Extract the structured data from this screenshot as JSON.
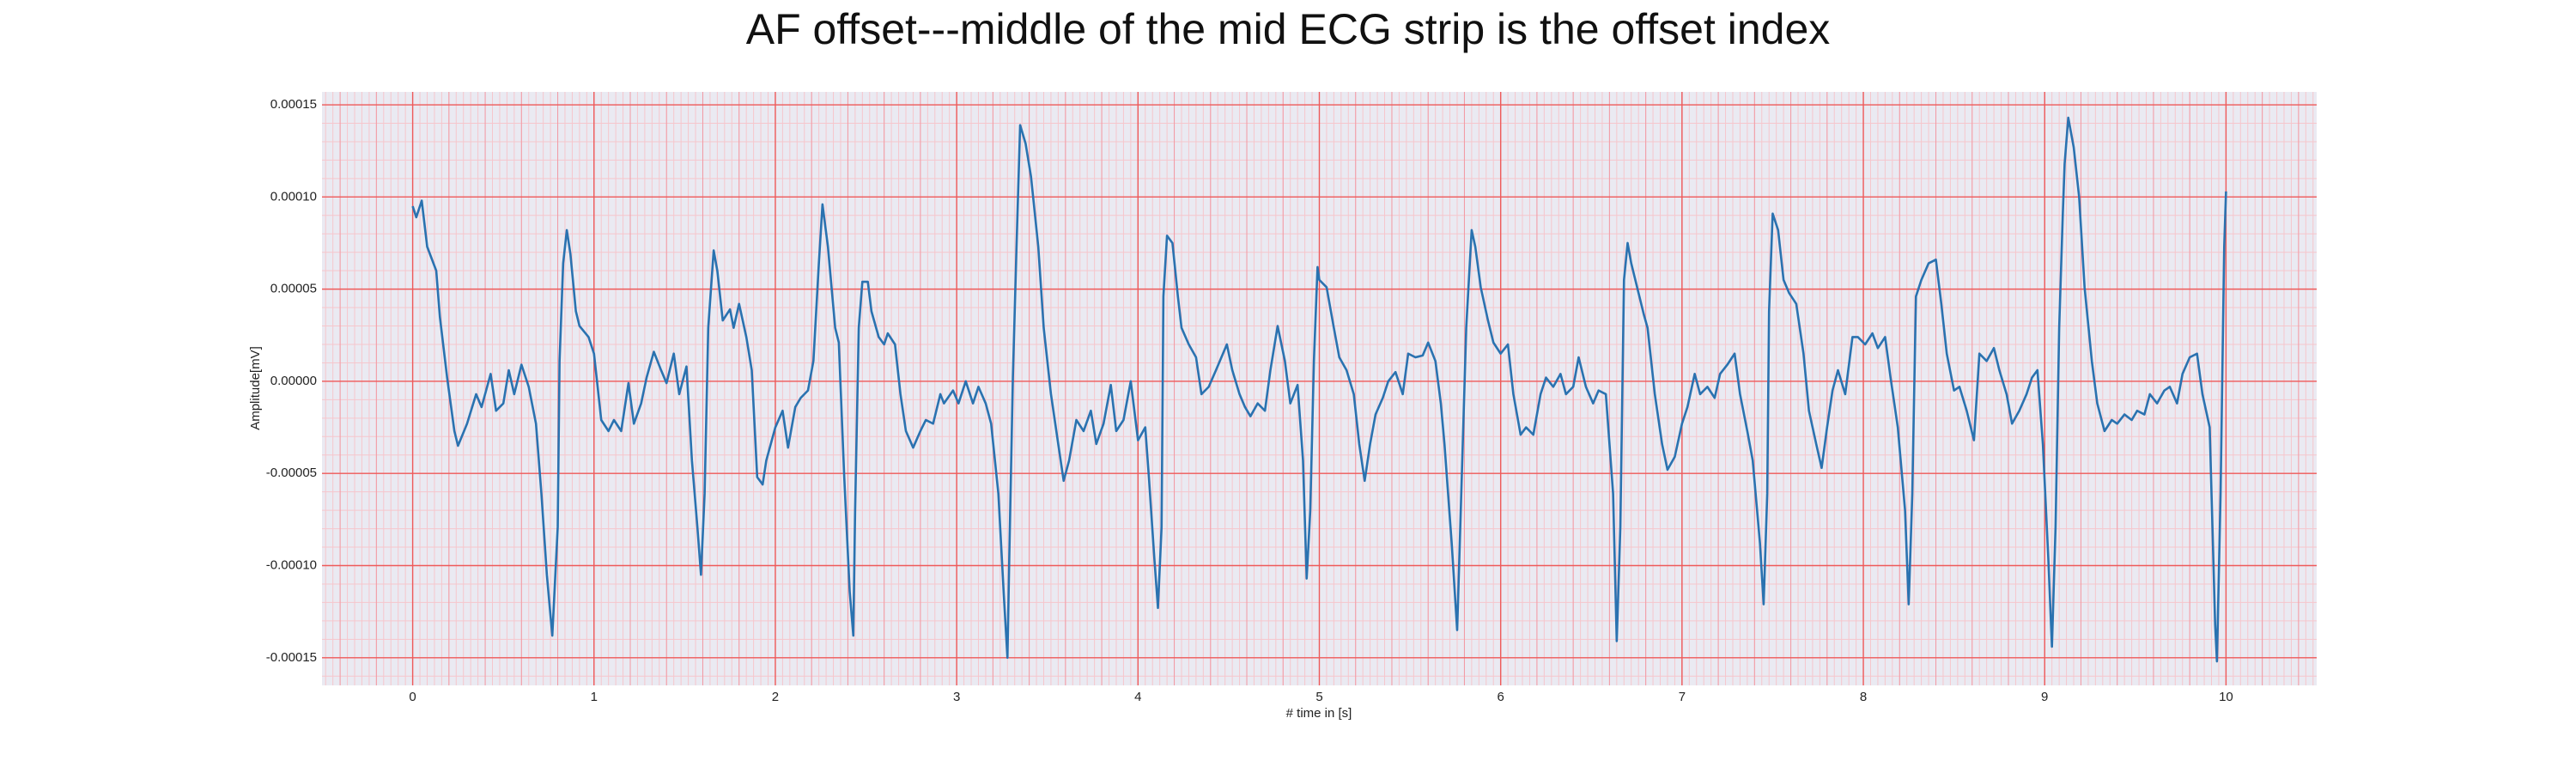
{
  "chart_data": {
    "type": "line",
    "title": "AF offset---middle of the mid ECG strip is the offset index",
    "xlabel": "# time in [s]",
    "ylabel": "Amplitude[mV]",
    "color": "#2a72b0",
    "grid": true,
    "xlim": [
      -0.5,
      10.5
    ],
    "xticks": [
      0,
      1,
      2,
      3,
      4,
      5,
      6,
      7,
      8,
      9,
      10
    ],
    "ylim": [
      -0.000165,
      0.000157
    ],
    "yticks": [
      -0.00015,
      {
        "value": -0.0001,
        "label": "-0.00010"
      },
      -5e-05,
      {
        "value": 0,
        "label": "0.00000"
      },
      5e-05,
      {
        "value": 0.0001,
        "label": "0.00010"
      },
      0.00015
    ],
    "x": [
      0,
      0.02,
      0.05,
      0.08,
      0.13,
      0.15,
      0.19,
      0.23,
      0.25,
      0.3,
      0.35,
      0.38,
      0.43,
      0.46,
      0.5,
      0.53,
      0.56,
      0.6,
      0.64,
      0.68,
      0.71,
      0.74,
      0.77,
      0.8,
      0.81,
      0.83,
      0.85,
      0.87,
      0.9,
      0.92,
      0.97,
      1.0,
      1.04,
      1.08,
      1.11,
      1.15,
      1.19,
      1.22,
      1.26,
      1.29,
      1.33,
      1.37,
      1.4,
      1.44,
      1.47,
      1.51,
      1.54,
      1.57,
      1.59,
      1.61,
      1.63,
      1.66,
      1.68,
      1.71,
      1.75,
      1.77,
      1.8,
      1.84,
      1.87,
      1.9,
      1.93,
      1.95,
      2.0,
      2.04,
      2.07,
      2.11,
      2.14,
      2.18,
      2.21,
      2.24,
      2.26,
      2.29,
      2.33,
      2.35,
      2.38,
      2.41,
      2.43,
      2.44,
      2.46,
      2.48,
      2.51,
      2.53,
      2.57,
      2.6,
      2.62,
      2.66,
      2.69,
      2.72,
      2.76,
      2.8,
      2.83,
      2.87,
      2.91,
      2.93,
      2.98,
      3.01,
      3.05,
      3.09,
      3.12,
      3.16,
      3.19,
      3.23,
      3.26,
      3.28,
      3.29,
      3.31,
      3.33,
      3.35,
      3.38,
      3.41,
      3.45,
      3.48,
      3.52,
      3.56,
      3.59,
      3.62,
      3.66,
      3.7,
      3.74,
      3.77,
      3.81,
      3.85,
      3.88,
      3.92,
      3.96,
      4.0,
      4.04,
      4.06,
      4.09,
      4.11,
      4.13,
      4.14,
      4.16,
      4.19,
      4.22,
      4.24,
      4.28,
      4.32,
      4.35,
      4.39,
      4.43,
      4.46,
      4.49,
      4.52,
      4.56,
      4.59,
      4.62,
      4.66,
      4.7,
      4.73,
      4.77,
      4.81,
      4.84,
      4.88,
      4.91,
      4.93,
      4.95,
      4.97,
      4.99,
      5.0,
      5.04,
      5.08,
      5.11,
      5.15,
      5.19,
      5.22,
      5.25,
      5.28,
      5.31,
      5.35,
      5.38,
      5.42,
      5.46,
      5.49,
      5.53,
      5.57,
      5.6,
      5.64,
      5.67,
      5.69,
      5.73,
      5.76,
      5.78,
      5.81,
      5.84,
      5.86,
      5.89,
      5.93,
      5.96,
      6.0,
      6.04,
      6.07,
      6.11,
      6.14,
      6.18,
      6.22,
      6.25,
      6.29,
      6.33,
      6.36,
      6.4,
      6.43,
      6.47,
      6.51,
      6.54,
      6.58,
      6.62,
      6.64,
      6.66,
      6.68,
      6.7,
      6.72,
      6.76,
      6.79,
      6.81,
      6.85,
      6.89,
      6.92,
      6.96,
      7.0,
      7.03,
      7.07,
      7.1,
      7.14,
      7.18,
      7.21,
      7.25,
      7.29,
      7.32,
      7.36,
      7.39,
      7.43,
      7.45,
      7.47,
      7.48,
      7.5,
      7.53,
      7.56,
      7.59,
      7.63,
      7.67,
      7.7,
      7.74,
      7.77,
      7.8,
      7.83,
      7.86,
      7.9,
      7.94,
      7.97,
      8.01,
      8.05,
      8.08,
      8.12,
      8.15,
      8.19,
      8.23,
      8.25,
      8.27,
      8.29,
      8.32,
      8.36,
      8.4,
      8.43,
      8.46,
      8.5,
      8.53,
      8.57,
      8.61,
      8.64,
      8.68,
      8.72,
      8.75,
      8.79,
      8.82,
      8.86,
      8.9,
      8.93,
      8.96,
      8.99,
      9.02,
      9.04,
      9.06,
      9.08,
      9.1,
      9.11,
      9.13,
      9.16,
      9.19,
      9.22,
      9.26,
      9.29,
      9.33,
      9.37,
      9.4,
      9.44,
      9.48,
      9.51,
      9.55,
      9.58,
      9.62,
      9.66,
      9.69,
      9.73,
      9.76,
      9.8,
      9.84,
      9.87,
      9.91,
      9.94,
      9.95,
      9.97,
      9.99,
      10.0
    ],
    "values": [
      9.5e-05,
      8.9e-05,
      9.8e-05,
      7.3e-05,
      6e-05,
      3.5e-05,
      2e-06,
      -2.7e-05,
      -3.5e-05,
      -2.3e-05,
      -7e-06,
      -1.4e-05,
      4e-06,
      -1.6e-05,
      -1.2e-05,
      6e-06,
      -7e-06,
      9e-06,
      -3e-06,
      -2.3e-05,
      -6.1e-05,
      -0.000105,
      -0.000138,
      -7.9e-05,
      1.1e-05,
      6.4e-05,
      8.2e-05,
      6.9e-05,
      3.8e-05,
      3e-05,
      2.4e-05,
      1.5e-05,
      -2.1e-05,
      -2.7e-05,
      -2.1e-05,
      -2.7e-05,
      -1e-06,
      -2.3e-05,
      -1.2e-05,
      2e-06,
      1.6e-05,
      6e-06,
      -1e-06,
      1.5e-05,
      -7e-06,
      8e-06,
      -4.3e-05,
      -7.9e-05,
      -0.000105,
      -6.1e-05,
      2.9e-05,
      7.1e-05,
      6e-05,
      3.3e-05,
      3.9e-05,
      2.9e-05,
      4.2e-05,
      2.4e-05,
      6e-06,
      -5.2e-05,
      -5.6e-05,
      -4.3e-05,
      -2.5e-05,
      -1.6e-05,
      -3.6e-05,
      -1.4e-05,
      -9e-06,
      -5e-06,
      1.1e-05,
      6.4e-05,
      9.6e-05,
      7.3e-05,
      2.9e-05,
      2.1e-05,
      -5.2e-05,
      -0.000114,
      -0.000138,
      -7e-05,
      2.9e-05,
      5.4e-05,
      5.4e-05,
      3.8e-05,
      2.4e-05,
      2e-05,
      2.6e-05,
      2e-05,
      -7e-06,
      -2.7e-05,
      -3.6e-05,
      -2.7e-05,
      -2.1e-05,
      -2.3e-05,
      -7e-06,
      -1.2e-05,
      -5e-06,
      -1.2e-05,
      0,
      -1.2e-05,
      -3e-06,
      -1.2e-05,
      -2.3e-05,
      -6.1e-05,
      -0.000116,
      -0.00015,
      -9.6e-05,
      2e-06,
      7.3e-05,
      0.000139,
      0.000129,
      0.000111,
      7.3e-05,
      2.9e-05,
      -7e-06,
      -3.4e-05,
      -5.4e-05,
      -4.3e-05,
      -2.1e-05,
      -2.7e-05,
      -1.6e-05,
      -3.4e-05,
      -2.3e-05,
      -2e-06,
      -2.7e-05,
      -2.1e-05,
      0,
      -3.2e-05,
      -2.5e-05,
      -5.2e-05,
      -9.6e-05,
      -0.000123,
      -7.9e-05,
      4.6e-05,
      7.9e-05,
      7.5e-05,
      4.6e-05,
      2.9e-05,
      2e-05,
      1.3e-05,
      -7e-06,
      -3e-06,
      6e-06,
      1.3e-05,
      2e-05,
      6e-06,
      -7e-06,
      -1.4e-05,
      -1.9e-05,
      -1.2e-05,
      -1.6e-05,
      6e-06,
      3e-05,
      1.1e-05,
      -1.2e-05,
      -2e-06,
      -4.3e-05,
      -0.000107,
      -7e-05,
      1.1e-05,
      6.2e-05,
      5.5e-05,
      5.1e-05,
      2.9e-05,
      1.3e-05,
      6e-06,
      -7e-06,
      -3.4e-05,
      -5.4e-05,
      -3.4e-05,
      -1.8e-05,
      -9e-06,
      0,
      5e-06,
      -7e-06,
      1.5e-05,
      1.3e-05,
      1.4e-05,
      2.1e-05,
      1.1e-05,
      -1.2e-05,
      -3.4e-05,
      -8.8e-05,
      -0.000135,
      -7e-05,
      2.9e-05,
      8.2e-05,
      7.3e-05,
      5.1e-05,
      3.3e-05,
      2.1e-05,
      1.5e-05,
      2e-05,
      -7e-06,
      -2.9e-05,
      -2.5e-05,
      -2.9e-05,
      -7e-06,
      2e-06,
      -3e-06,
      4e-06,
      -7e-06,
      -3e-06,
      1.3e-05,
      -3e-06,
      -1.2e-05,
      -5e-06,
      -7e-06,
      -6.1e-05,
      -0.000141,
      -7.9e-05,
      5.5e-05,
      7.5e-05,
      6.4e-05,
      4.8e-05,
      3.6e-05,
      2.9e-05,
      -7e-06,
      -3.4e-05,
      -4.8e-05,
      -4.1e-05,
      -2.3e-05,
      -1.4e-05,
      4e-06,
      -7e-06,
      -3e-06,
      -9e-06,
      4e-06,
      9e-06,
      1.5e-05,
      -7e-06,
      -2.7e-05,
      -4.3e-05,
      -8.8e-05,
      -0.000121,
      -6.1e-05,
      3.8e-05,
      9.1e-05,
      8.2e-05,
      5.5e-05,
      4.8e-05,
      4.2e-05,
      1.5e-05,
      -1.6e-05,
      -3.4e-05,
      -4.7e-05,
      -2.5e-05,
      -5e-06,
      6e-06,
      -7e-06,
      2.4e-05,
      2.4e-05,
      2e-05,
      2.6e-05,
      1.8e-05,
      2.4e-05,
      2e-06,
      -2.5e-05,
      -7e-05,
      -0.000121,
      -6.1e-05,
      4.6e-05,
      5.5e-05,
      6.4e-05,
      6.6e-05,
      4.2e-05,
      1.5e-05,
      -5e-06,
      -3e-06,
      -1.6e-05,
      -3.2e-05,
      1.5e-05,
      1.1e-05,
      1.8e-05,
      6e-06,
      -7e-06,
      -2.3e-05,
      -1.6e-05,
      -7e-06,
      2e-06,
      6e-06,
      -3.4e-05,
      -9.6e-05,
      -0.000144,
      -7.9e-05,
      2.9e-05,
      9.1e-05,
      0.000118,
      0.000143,
      0.000127,
      0.0001,
      5.1e-05,
      1.1e-05,
      -1.2e-05,
      -2.7e-05,
      -2.1e-05,
      -2.3e-05,
      -1.8e-05,
      -2.1e-05,
      -1.6e-05,
      -1.8e-05,
      -7e-06,
      -1.2e-05,
      -5e-06,
      -3e-06,
      -1.2e-05,
      4e-06,
      1.3e-05,
      1.5e-05,
      -7e-06,
      -2.5e-05,
      -0.000132,
      -0.000152,
      -6.1e-05,
      7.3e-05,
      0.000103
    ]
  }
}
